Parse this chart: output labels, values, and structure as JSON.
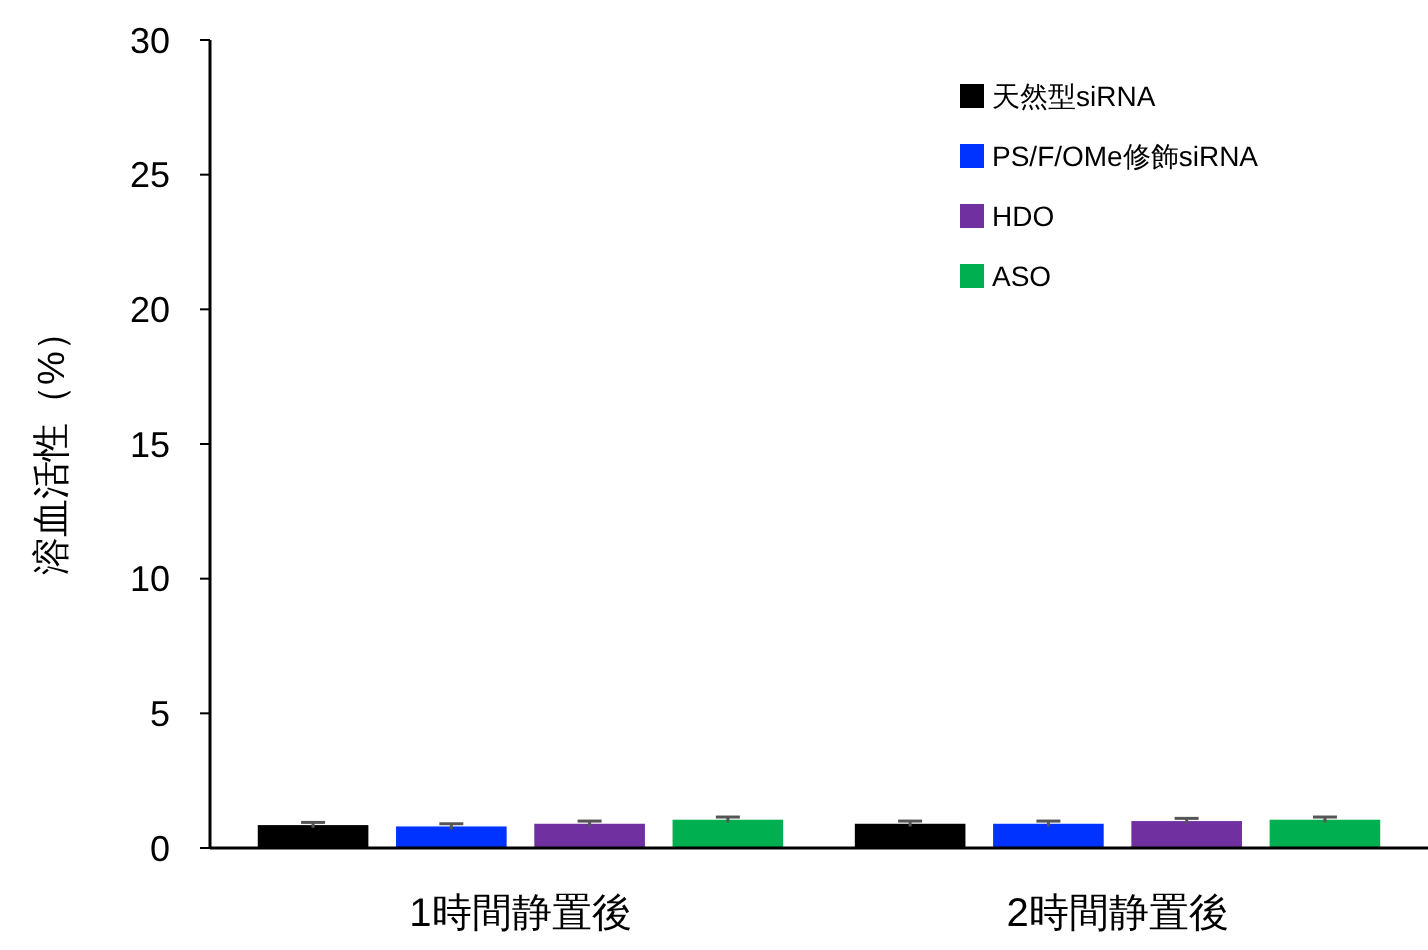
{
  "chart_data": {
    "type": "bar",
    "ylabel": "溶血活性（%）",
    "categories": [
      "1時間静置後",
      "2時間静置後"
    ],
    "series": [
      {
        "name": "天然型siRNA",
        "color": "#000000",
        "values": [
          0.85,
          0.9
        ],
        "errors": [
          0.1,
          0.1
        ]
      },
      {
        "name": "PS/F/OMe修飾siRNA",
        "color": "#0033ff",
        "values": [
          0.8,
          0.9
        ],
        "errors": [
          0.1,
          0.1
        ]
      },
      {
        "name": "HDO",
        "color": "#7030a0",
        "values": [
          0.9,
          1.0
        ],
        "errors": [
          0.1,
          0.1
        ]
      },
      {
        "name": "ASO",
        "color": "#00b050",
        "values": [
          1.05,
          1.05
        ],
        "errors": [
          0.1,
          0.1
        ]
      }
    ],
    "ylim": [
      0,
      30
    ],
    "yticks": [
      0,
      5,
      10,
      15,
      20,
      25,
      30
    ],
    "grid": false,
    "legend": "top right"
  }
}
